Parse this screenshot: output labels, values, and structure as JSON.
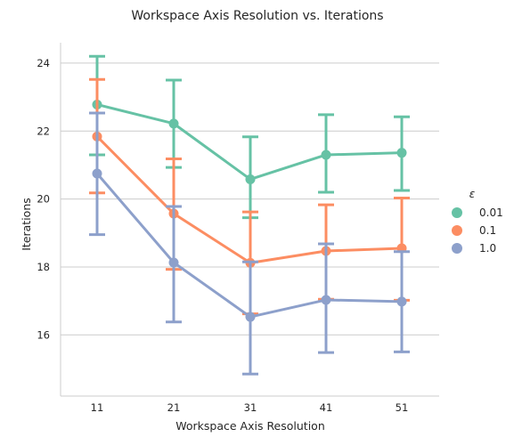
{
  "chart_data": {
    "type": "line",
    "title": "Workspace Axis Resolution vs. Iterations",
    "xlabel": "Workspace Axis Resolution",
    "ylabel": "Iterations",
    "categories": [
      "11",
      "21",
      "31",
      "41",
      "51"
    ],
    "yticks": [
      "16",
      "18",
      "20",
      "22",
      "24"
    ],
    "ylim": [
      14.2,
      24.6
    ],
    "grid": "horizontal",
    "legend": {
      "title": "ε",
      "placement": "right"
    },
    "series": [
      {
        "name": "0.01",
        "color": "#66c2a5",
        "values": [
          22.78,
          22.22,
          20.58,
          21.3,
          21.36
        ],
        "ci_low": [
          21.3,
          20.93,
          19.45,
          20.2,
          20.25
        ],
        "ci_high": [
          24.2,
          23.5,
          21.83,
          22.48,
          22.42
        ]
      },
      {
        "name": "0.1",
        "color": "#fc8d62",
        "values": [
          21.84,
          19.57,
          18.12,
          18.47,
          18.55
        ],
        "ci_low": [
          20.18,
          17.93,
          16.62,
          17.05,
          17.02
        ],
        "ci_high": [
          23.52,
          21.18,
          19.62,
          19.83,
          20.03
        ]
      },
      {
        "name": "1.0",
        "color": "#8da0cb",
        "values": [
          20.75,
          18.13,
          16.53,
          17.03,
          16.98
        ],
        "ci_low": [
          18.95,
          16.38,
          14.85,
          15.48,
          15.5
        ],
        "ci_high": [
          22.53,
          19.78,
          18.15,
          18.68,
          18.45
        ]
      }
    ]
  }
}
